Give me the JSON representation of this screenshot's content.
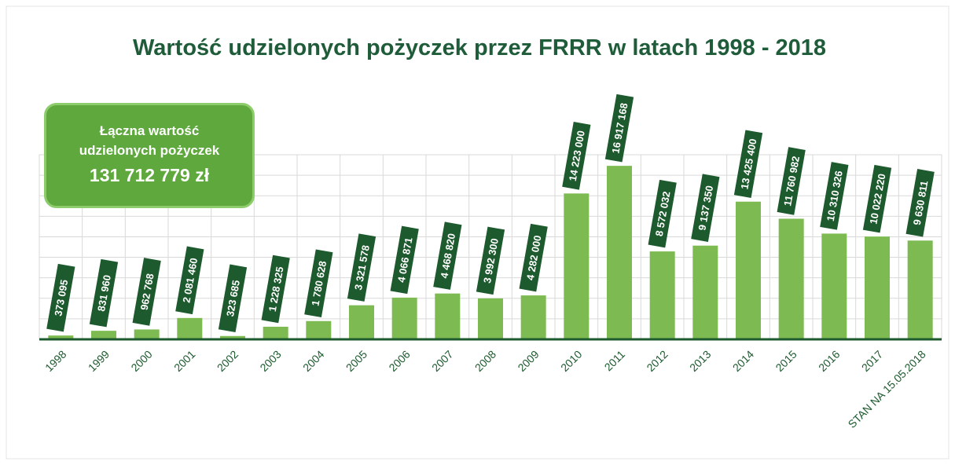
{
  "chart_data": {
    "type": "bar",
    "title": "Wartość udzielonych pożyczek przez FRRR w latach 1998 - 2018",
    "annotation": {
      "text": "Łączna wartość udzielonych pożyczek",
      "total": "131 712 779 zł"
    },
    "categories": [
      "1998",
      "1999",
      "2000",
      "2001",
      "2002",
      "2003",
      "2004",
      "2005",
      "2006",
      "2007",
      "2008",
      "2009",
      "2010",
      "2011",
      "2012",
      "2013",
      "2014",
      "2015",
      "2016",
      "2017",
      "STAN NA 15.05.2018"
    ],
    "values": [
      373095,
      831960,
      962768,
      2081460,
      323685,
      1228325,
      1780628,
      3321578,
      4066871,
      4468820,
      3992300,
      4282000,
      14223000,
      16917168,
      8572032,
      9137350,
      13425400,
      11760982,
      10310326,
      10022220,
      9630811
    ],
    "value_labels": [
      "373 095",
      "831 960",
      "962 768",
      "2 081 460",
      "323 685",
      "1 228 325",
      "1 780 628",
      "3 321 578",
      "4 066 871",
      "4 468 820",
      "3 992 300",
      "4 282 000",
      "14 223 000",
      "16 917 168",
      "8 572 032",
      "9 137 350",
      "13 425 400",
      "11 760 982",
      "10 310 326",
      "10 022 220",
      "9 630 811"
    ],
    "color": "#7dbb52",
    "ylim": [
      0,
      18000000
    ],
    "yticks": [
      0,
      2000000,
      4000000,
      6000000,
      8000000,
      10000000,
      12000000,
      14000000,
      16000000,
      18000000
    ],
    "grid": true
  }
}
